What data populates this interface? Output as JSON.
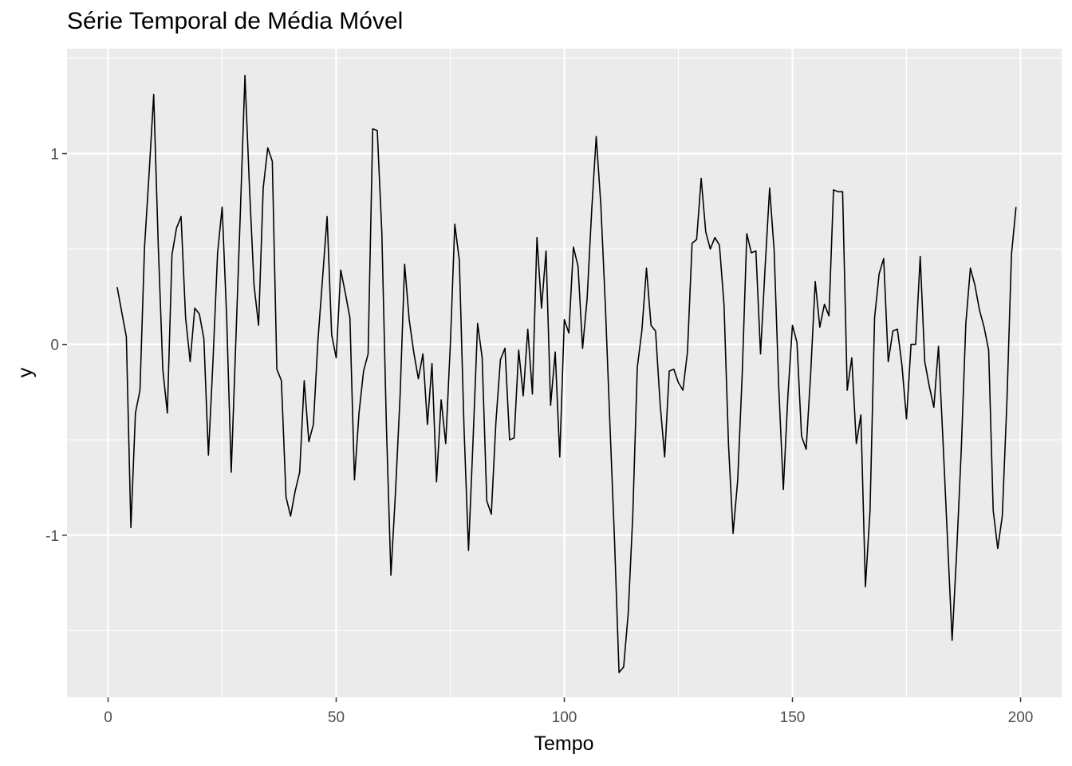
{
  "chart_data": {
    "type": "line",
    "title": "Série Temporal de Média Móvel",
    "xlabel": "Tempo",
    "ylabel": "y",
    "xlim": [
      -9,
      209
    ],
    "ylim": [
      -1.85,
      1.55
    ],
    "x_ticks": [
      0,
      50,
      100,
      150,
      200
    ],
    "x_tick_labels": [
      "0",
      "50",
      "100",
      "150",
      "200"
    ],
    "y_ticks": [
      -1,
      0,
      1
    ],
    "y_tick_labels": [
      "-1",
      "0",
      "1"
    ],
    "grid": true,
    "legend": "none",
    "colors": {
      "line": "#000000",
      "panel": "#ebebeb",
      "grid": "#ffffff"
    },
    "series": [
      {
        "x_start": 2,
        "values": [
          0.3,
          0.17,
          0.04,
          -0.96,
          -0.36,
          -0.24,
          0.51,
          0.9,
          1.31,
          0.52,
          -0.13,
          -0.36,
          0.47,
          0.61,
          0.67,
          0.14,
          -0.09,
          0.19,
          0.16,
          0.03,
          -0.58,
          -0.09,
          0.48,
          0.72,
          0.14,
          -0.67,
          0.01,
          0.7,
          1.41,
          0.82,
          0.31,
          0.1,
          0.82,
          1.03,
          0.96,
          -0.13,
          -0.19,
          -0.8,
          -0.9,
          -0.77,
          -0.67,
          -0.19,
          -0.51,
          -0.42,
          0.02,
          0.34,
          0.67,
          0.05,
          -0.07,
          0.39,
          0.27,
          0.14,
          -0.71,
          -0.36,
          -0.14,
          -0.05,
          1.13,
          1.12,
          0.59,
          -0.42,
          -1.21,
          -0.77,
          -0.27,
          0.42,
          0.13,
          -0.04,
          -0.18,
          -0.05,
          -0.42,
          -0.1,
          -0.72,
          -0.29,
          -0.52,
          -0.01,
          0.63,
          0.44,
          -0.43,
          -1.08,
          -0.5,
          0.11,
          -0.07,
          -0.82,
          -0.89,
          -0.41,
          -0.08,
          -0.02,
          -0.5,
          -0.49,
          -0.03,
          -0.27,
          0.08,
          -0.26,
          0.56,
          0.19,
          0.49,
          -0.32,
          -0.04,
          -0.59,
          0.13,
          0.06,
          0.51,
          0.41,
          -0.02,
          0.24,
          0.7,
          1.09,
          0.73,
          0.2,
          -0.42,
          -1.02,
          -1.72,
          -1.69,
          -1.41,
          -0.9,
          -0.12,
          0.07,
          0.4,
          0.1,
          0.07,
          -0.31,
          -0.59,
          -0.14,
          -0.13,
          -0.2,
          -0.24,
          -0.04,
          0.53,
          0.55,
          0.87,
          0.59,
          0.5,
          0.56,
          0.52,
          0.21,
          -0.53,
          -0.99,
          -0.71,
          -0.15,
          0.58,
          0.48,
          0.49,
          -0.05,
          0.4,
          0.82,
          0.49,
          -0.22,
          -0.76,
          -0.27,
          0.1,
          0.01,
          -0.48,
          -0.55,
          -0.15,
          0.33,
          0.09,
          0.21,
          0.15,
          0.81,
          0.8,
          0.8,
          -0.24,
          -0.07,
          -0.52,
          -0.37,
          -1.27,
          -0.87,
          0.14,
          0.37,
          0.45,
          -0.09,
          0.07,
          0.08,
          -0.11,
          -0.39,
          0.0,
          0.0,
          0.46,
          -0.09,
          -0.22,
          -0.33,
          -0.01,
          -0.51,
          -1.03,
          -1.55,
          -1.09,
          -0.55,
          0.11,
          0.4,
          0.31,
          0.18,
          0.09,
          -0.03,
          -0.87,
          -1.07,
          -0.9,
          -0.3,
          0.47,
          0.72
        ]
      }
    ]
  }
}
